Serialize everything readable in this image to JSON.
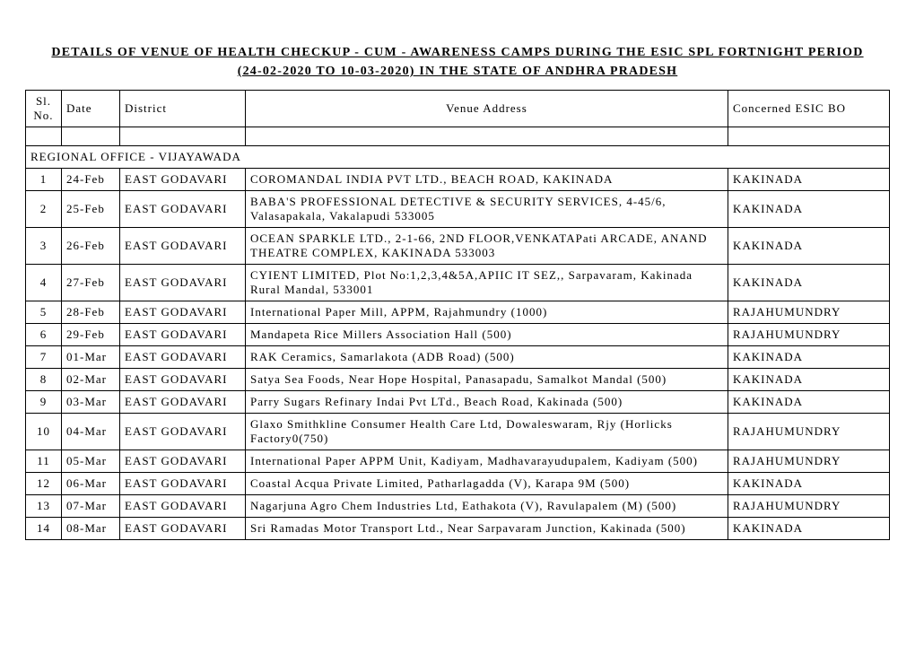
{
  "title_line1": "DETAILS OF VENUE OF HEALTH CHECKUP - CUM - AWARENESS CAMPS DURING THE ESIC SPL FORTNIGHT PERIOD",
  "title_line2": "(24-02-2020 TO 10-03-2020) IN THE STATE OF ANDHRA PRADESH",
  "headers": {
    "sl": "Sl. No.",
    "date": "Date",
    "district": "District",
    "venue": "Venue Address",
    "bo": "Concerned ESIC BO"
  },
  "section_label": "REGIONAL OFFICE - VIJAYAWADA",
  "rows": [
    {
      "sl": "1",
      "date": "24-Feb",
      "district": "EAST GODAVARI",
      "venue": "COROMANDAL INDIA PVT LTD., BEACH ROAD, KAKINADA",
      "bo": "KAKINADA"
    },
    {
      "sl": "2",
      "date": "25-Feb",
      "district": "EAST GODAVARI",
      "venue": "BABA'S PROFESSIONAL DETECTIVE & SECURITY SERVICES, 4-45/6, Valasapakala, Vakalapudi 533005",
      "bo": "KAKINADA"
    },
    {
      "sl": "3",
      "date": "26-Feb",
      "district": "EAST GODAVARI",
      "venue": "OCEAN SPARKLE LTD., 2-1-66, 2ND FLOOR,VENKATAPati ARCADE, ANAND THEATRE COMPLEX, KAKINADA 533003",
      "bo": "KAKINADA"
    },
    {
      "sl": "4",
      "date": "27-Feb",
      "district": "EAST GODAVARI",
      "venue": "CYIENT LIMITED, Plot No:1,2,3,4&5A,APIIC IT SEZ,, Sarpavaram, Kakinada Rural Mandal, 533001",
      "bo": "KAKINADA"
    },
    {
      "sl": "5",
      "date": "28-Feb",
      "district": "EAST GODAVARI",
      "venue": "International Paper Mill, APPM, Rajahmundry (1000)",
      "bo": "RAJAHUMUNDRY"
    },
    {
      "sl": "6",
      "date": "29-Feb",
      "district": "EAST GODAVARI",
      "venue": "Mandapeta Rice Millers Association Hall (500)",
      "bo": "RAJAHUMUNDRY"
    },
    {
      "sl": "7",
      "date": "01-Mar",
      "district": "EAST GODAVARI",
      "venue": "RAK Ceramics, Samarlakota (ADB Road) (500)",
      "bo": "KAKINADA"
    },
    {
      "sl": "8",
      "date": "02-Mar",
      "district": "EAST GODAVARI",
      "venue": "Satya Sea Foods, Near Hope Hospital, Panasapadu, Samalkot Mandal (500)",
      "bo": "KAKINADA"
    },
    {
      "sl": "9",
      "date": "03-Mar",
      "district": "EAST GODAVARI",
      "venue": "Parry Sugars Refinary Indai Pvt LTd., Beach Road, Kakinada (500)",
      "bo": "KAKINADA"
    },
    {
      "sl": "10",
      "date": "04-Mar",
      "district": "EAST GODAVARI",
      "venue": "Glaxo Smithkline Consumer Health Care Ltd, Dowaleswaram, Rjy (Horlicks Factory0(750)",
      "bo": "RAJAHUMUNDRY"
    },
    {
      "sl": "11",
      "date": "05-Mar",
      "district": "EAST GODAVARI",
      "venue": "International Paper APPM Unit, Kadiyam, Madhavarayudupalem, Kadiyam (500)",
      "bo": "RAJAHUMUNDRY"
    },
    {
      "sl": "12",
      "date": "06-Mar",
      "district": "EAST GODAVARI",
      "venue": "Coastal Acqua Private Limited, Patharlagadda (V), Karapa 9M (500)",
      "bo": "KAKINADA"
    },
    {
      "sl": "13",
      "date": "07-Mar",
      "district": "EAST GODAVARI",
      "venue": "Nagarjuna Agro Chem Industries Ltd, Eathakota (V), Ravulapalem (M) (500)",
      "bo": "RAJAHUMUNDRY"
    },
    {
      "sl": "14",
      "date": "08-Mar",
      "district": "EAST GODAVARI",
      "venue": "Sri Ramadas Motor Transport Ltd., Near Sarpavaram Junction, Kakinada (500)",
      "bo": "KAKINADA"
    }
  ]
}
